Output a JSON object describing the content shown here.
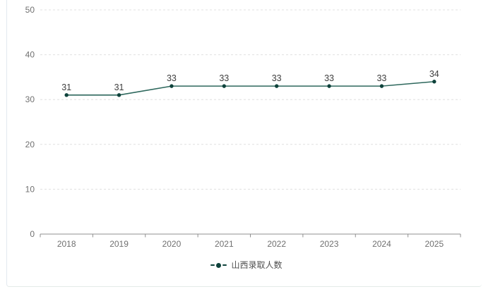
{
  "chart_data": {
    "type": "line",
    "categories": [
      "2018",
      "2019",
      "2020",
      "2021",
      "2022",
      "2023",
      "2024",
      "2025"
    ],
    "series": [
      {
        "name": "山西录取人数",
        "values": [
          31,
          31,
          33,
          33,
          33,
          33,
          33,
          34
        ]
      }
    ],
    "title": "",
    "xlabel": "",
    "ylabel": "",
    "ylim": [
      0,
      50
    ],
    "y_ticks": [
      0,
      10,
      20,
      30,
      40,
      50
    ],
    "grid": "horizontal dashed",
    "point_labels_shown": true,
    "legend_position": "bottom-center"
  },
  "legend": {
    "items": [
      {
        "label": "山西录取人数",
        "marker": "dash-dot-dash"
      }
    ]
  },
  "colors": {
    "line": "#2e685d",
    "point": "#0e423b",
    "value_label": "#3d3d3d",
    "tick_label": "#707070",
    "grid": "#e0e0e0",
    "axis": "#8f8f8f",
    "card_border": "#e3e9ef",
    "background": "#ffffff"
  }
}
